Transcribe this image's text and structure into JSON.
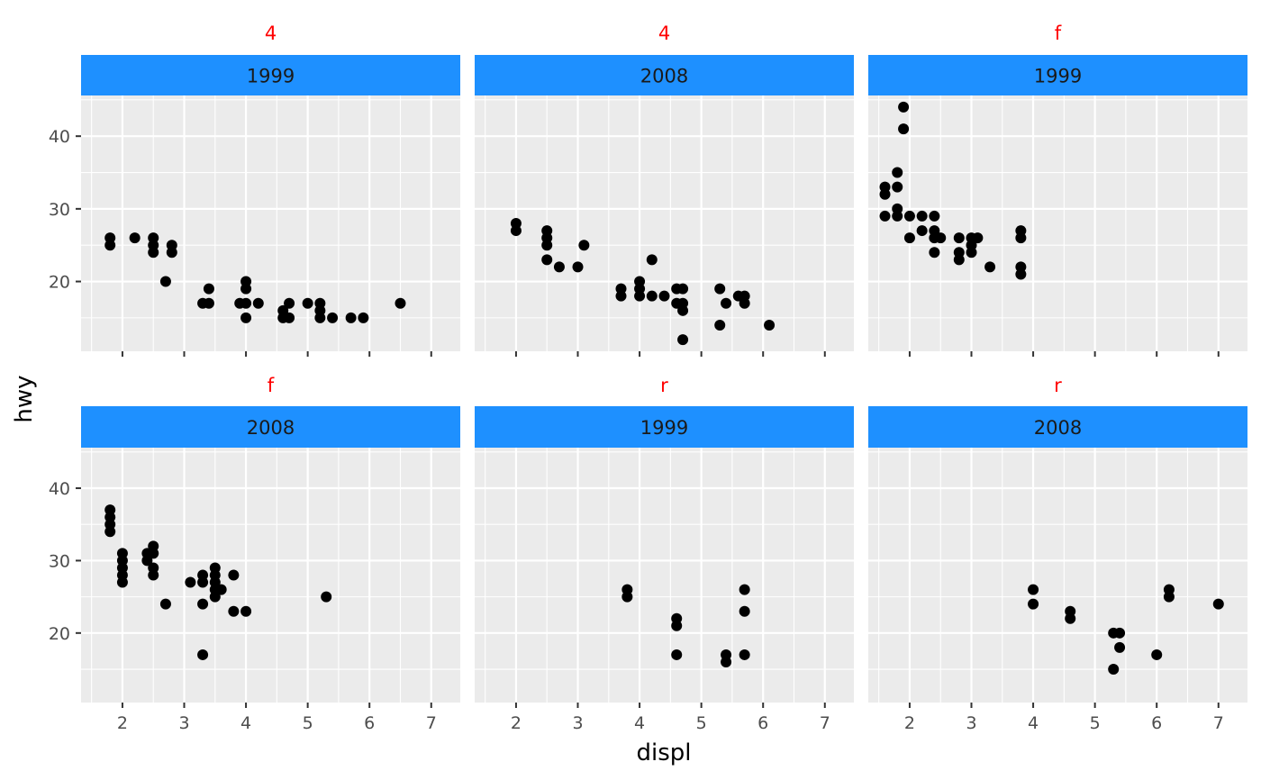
{
  "chart_data": {
    "type": "scatter",
    "xlabel": "displ",
    "ylabel": "hwy",
    "xlim": [
      1.33,
      7.47
    ],
    "ylim": [
      10.4,
      45.6
    ],
    "xticks": [
      2,
      3,
      4,
      5,
      6,
      7
    ],
    "yticks": [
      20,
      30,
      40
    ],
    "grid": true,
    "colors": {
      "panel_bg": "#EBEBEB",
      "grid": "#FFFFFF",
      "strip_bg": "#1E90FF",
      "outer_strip_text": "#FF0000",
      "point": "#000000",
      "axis_text": "#4D4D4D"
    },
    "panels": [
      {
        "outer_label": "4",
        "strip_label": "1999",
        "points": [
          [
            1.8,
            26
          ],
          [
            1.8,
            25
          ],
          [
            2.2,
            26
          ],
          [
            2.5,
            26
          ],
          [
            2.5,
            25
          ],
          [
            2.5,
            24
          ],
          [
            2.7,
            20
          ],
          [
            2.8,
            25
          ],
          [
            2.8,
            24
          ],
          [
            3.3,
            17
          ],
          [
            3.4,
            19
          ],
          [
            3.4,
            17
          ],
          [
            3.9,
            17
          ],
          [
            4.0,
            20
          ],
          [
            4.0,
            19
          ],
          [
            4.0,
            17
          ],
          [
            4.0,
            15
          ],
          [
            4.2,
            17
          ],
          [
            4.6,
            16
          ],
          [
            4.6,
            15
          ],
          [
            4.7,
            17
          ],
          [
            4.7,
            15
          ],
          [
            5.0,
            17
          ],
          [
            5.2,
            17
          ],
          [
            5.2,
            16
          ],
          [
            5.2,
            15
          ],
          [
            5.4,
            15
          ],
          [
            5.7,
            15
          ],
          [
            5.9,
            15
          ],
          [
            6.5,
            17
          ]
        ]
      },
      {
        "outer_label": "4",
        "strip_label": "2008",
        "points": [
          [
            2.0,
            28
          ],
          [
            2.0,
            27
          ],
          [
            2.5,
            27
          ],
          [
            2.5,
            26
          ],
          [
            2.5,
            25
          ],
          [
            2.5,
            23
          ],
          [
            2.7,
            22
          ],
          [
            3.0,
            22
          ],
          [
            3.1,
            25
          ],
          [
            3.7,
            19
          ],
          [
            3.7,
            18
          ],
          [
            4.0,
            20
          ],
          [
            4.0,
            19
          ],
          [
            4.0,
            18
          ],
          [
            4.2,
            23
          ],
          [
            4.2,
            18
          ],
          [
            4.4,
            18
          ],
          [
            4.6,
            19
          ],
          [
            4.6,
            17
          ],
          [
            4.7,
            19
          ],
          [
            4.7,
            17
          ],
          [
            4.7,
            16
          ],
          [
            4.7,
            12
          ],
          [
            5.3,
            19
          ],
          [
            5.3,
            14
          ],
          [
            5.4,
            17
          ],
          [
            5.6,
            18
          ],
          [
            5.7,
            18
          ],
          [
            5.7,
            17
          ],
          [
            6.1,
            14
          ]
        ]
      },
      {
        "outer_label": "f",
        "strip_label": "1999",
        "points": [
          [
            1.6,
            33
          ],
          [
            1.6,
            32
          ],
          [
            1.6,
            29
          ],
          [
            1.8,
            35
          ],
          [
            1.8,
            33
          ],
          [
            1.8,
            30
          ],
          [
            1.8,
            29
          ],
          [
            1.9,
            44
          ],
          [
            1.9,
            41
          ],
          [
            2.0,
            29
          ],
          [
            2.0,
            26
          ],
          [
            2.2,
            29
          ],
          [
            2.2,
            27
          ],
          [
            2.4,
            29
          ],
          [
            2.4,
            27
          ],
          [
            2.4,
            26
          ],
          [
            2.4,
            24
          ],
          [
            2.5,
            26
          ],
          [
            2.8,
            26
          ],
          [
            2.8,
            24
          ],
          [
            2.8,
            23
          ],
          [
            3.0,
            26
          ],
          [
            3.0,
            25
          ],
          [
            3.0,
            24
          ],
          [
            3.1,
            26
          ],
          [
            3.3,
            22
          ],
          [
            3.8,
            27
          ],
          [
            3.8,
            26
          ],
          [
            3.8,
            22
          ],
          [
            3.8,
            21
          ]
        ]
      },
      {
        "outer_label": "f",
        "strip_label": "2008",
        "points": [
          [
            1.8,
            37
          ],
          [
            1.8,
            36
          ],
          [
            1.8,
            35
          ],
          [
            1.8,
            34
          ],
          [
            2.0,
            31
          ],
          [
            2.0,
            30
          ],
          [
            2.0,
            29
          ],
          [
            2.0,
            28
          ],
          [
            2.0,
            27
          ],
          [
            2.4,
            31
          ],
          [
            2.4,
            30
          ],
          [
            2.5,
            32
          ],
          [
            2.5,
            31
          ],
          [
            2.5,
            29
          ],
          [
            2.5,
            28
          ],
          [
            2.7,
            24
          ],
          [
            3.1,
            27
          ],
          [
            3.3,
            28
          ],
          [
            3.3,
            27
          ],
          [
            3.3,
            24
          ],
          [
            3.3,
            17
          ],
          [
            3.5,
            29
          ],
          [
            3.5,
            28
          ],
          [
            3.5,
            27
          ],
          [
            3.5,
            26
          ],
          [
            3.5,
            25
          ],
          [
            3.6,
            26
          ],
          [
            3.8,
            28
          ],
          [
            3.8,
            23
          ],
          [
            4.0,
            23
          ],
          [
            5.3,
            25
          ]
        ]
      },
      {
        "outer_label": "r",
        "strip_label": "1999",
        "points": [
          [
            3.8,
            26
          ],
          [
            3.8,
            25
          ],
          [
            4.6,
            22
          ],
          [
            4.6,
            21
          ],
          [
            4.6,
            17
          ],
          [
            5.4,
            17
          ],
          [
            5.4,
            16
          ],
          [
            5.7,
            26
          ],
          [
            5.7,
            23
          ],
          [
            5.7,
            17
          ]
        ]
      },
      {
        "outer_label": "r",
        "strip_label": "2008",
        "points": [
          [
            4.0,
            26
          ],
          [
            4.0,
            24
          ],
          [
            4.6,
            23
          ],
          [
            4.6,
            22
          ],
          [
            5.3,
            20
          ],
          [
            5.3,
            15
          ],
          [
            5.4,
            20
          ],
          [
            5.4,
            18
          ],
          [
            6.0,
            17
          ],
          [
            6.2,
            26
          ],
          [
            6.2,
            25
          ],
          [
            7.0,
            24
          ]
        ]
      }
    ]
  }
}
